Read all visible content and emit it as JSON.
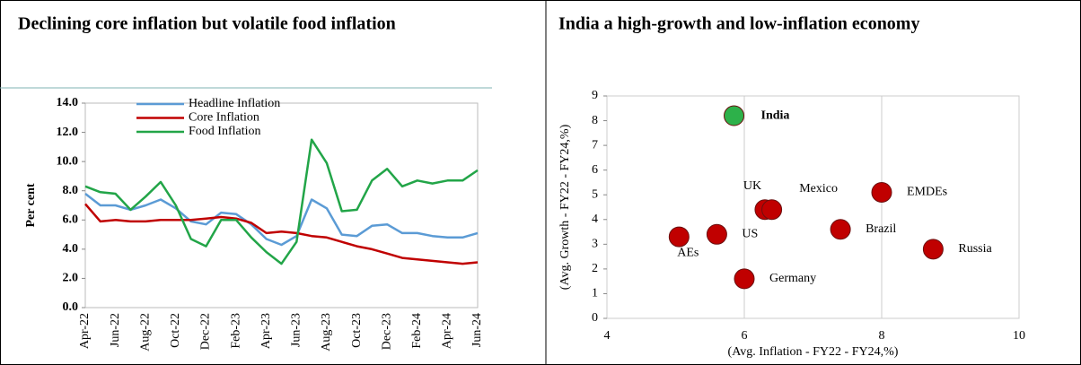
{
  "chart_data": [
    {
      "type": "line",
      "title": "Declining core inflation but volatile food inflation",
      "ylabel": "Per cent",
      "categories": [
        "Apr-22",
        null,
        "Jun-22",
        null,
        "Aug-22",
        null,
        "Oct-22",
        null,
        "Dec-22",
        null,
        "Feb-23",
        null,
        "Apr-23",
        null,
        "Jun-23",
        null,
        "Aug-23",
        null,
        "Oct-23",
        null,
        "Dec-23",
        null,
        "Feb-24",
        null,
        "Apr-24",
        null,
        "Jun-24"
      ],
      "series": [
        {
          "name": "Headline Inflation",
          "color": "#5b9bd5",
          "values": [
            7.8,
            7.0,
            7.0,
            6.7,
            7.0,
            7.4,
            6.8,
            5.9,
            5.7,
            6.5,
            6.4,
            5.7,
            4.7,
            4.3,
            4.9,
            7.4,
            6.8,
            5.0,
            4.9,
            5.6,
            5.7,
            5.1,
            5.1,
            4.9,
            4.8,
            4.8,
            5.1
          ]
        },
        {
          "name": "Core Inflation",
          "color": "#c00000",
          "values": [
            7.1,
            5.9,
            6.0,
            5.9,
            5.9,
            6.0,
            6.0,
            6.0,
            6.1,
            6.2,
            6.1,
            5.8,
            5.1,
            5.2,
            5.1,
            4.9,
            4.8,
            4.5,
            4.2,
            4.0,
            3.7,
            3.4,
            3.3,
            3.2,
            3.1,
            3.0,
            3.1
          ]
        },
        {
          "name": "Food Inflation",
          "color": "#22a548",
          "values": [
            8.3,
            7.9,
            7.8,
            6.7,
            7.6,
            8.6,
            7.0,
            4.7,
            4.2,
            6.0,
            6.0,
            4.8,
            3.8,
            3.0,
            4.5,
            11.5,
            9.9,
            6.6,
            6.7,
            8.7,
            9.5,
            8.3,
            8.7,
            8.5,
            8.7,
            8.7,
            9.4
          ]
        }
      ],
      "ylim": [
        0,
        14
      ],
      "yticks": [
        {
          "value": 0,
          "label": "0.0"
        },
        {
          "value": 2,
          "label": "2.0"
        },
        {
          "value": 4,
          "label": "4.0"
        },
        {
          "value": 6,
          "label": "6.0"
        },
        {
          "value": 8,
          "label": "8.0"
        },
        {
          "value": 10,
          "label": "10.0"
        },
        {
          "value": 12,
          "label": "12.0"
        },
        {
          "value": 14,
          "label": "14.0"
        }
      ]
    },
    {
      "type": "scatter",
      "title": "India a high-growth and low-inflation economy",
      "xlabel": "(Avg. Inflation -  FY22 - FY24,%)",
      "ylabel": "(Avg. Growth - FY22 - FY24,%)",
      "labels": [
        "India",
        "UK",
        "Mexico",
        "EMDEs",
        "Brazil",
        "US",
        "AEs",
        "Russia",
        "Germany"
      ],
      "x": [
        5.85,
        6.3,
        6.4,
        8.0,
        7.4,
        5.6,
        5.05,
        8.75,
        6.0
      ],
      "y": [
        8.2,
        4.4,
        4.4,
        5.1,
        3.6,
        3.4,
        3.3,
        2.8,
        1.6
      ],
      "colors": [
        "#2db14a",
        "#c00000",
        "#c00000",
        "#c00000",
        "#c00000",
        "#c00000",
        "#c00000",
        "#c00000",
        "#c00000"
      ],
      "xlim": [
        4,
        10
      ],
      "xticks": [
        4,
        6,
        8,
        10
      ],
      "ylim": [
        0,
        9
      ],
      "yticks": [
        0,
        1,
        2,
        3,
        4,
        5,
        6,
        7,
        8,
        9
      ],
      "grid": true
    }
  ]
}
